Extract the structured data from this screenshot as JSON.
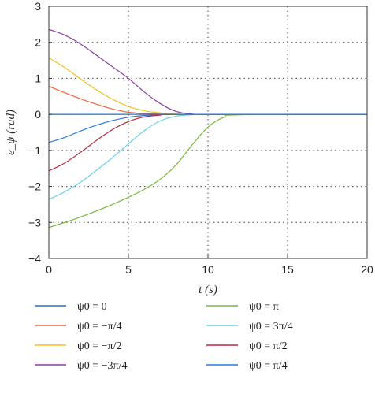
{
  "chart_data": {
    "type": "line",
    "xlabel": "t (s)",
    "ylabel": "e_ψ (rad)",
    "xlim": [
      0,
      20
    ],
    "ylim": [
      -4,
      3
    ],
    "x_ticks": [
      "0",
      "5",
      "10",
      "15",
      "20"
    ],
    "y_ticks": [
      "3",
      "2",
      "1",
      "0",
      "−1",
      "−2",
      "−3",
      "−4"
    ],
    "grid": true,
    "grid_style": "dotted",
    "legend_position": "bottom",
    "series": [
      {
        "name": "ψ0 = 0",
        "color": "#1f77c9",
        "x": [
          0,
          2,
          4,
          6,
          8,
          10,
          12,
          14,
          16,
          18,
          20
        ],
        "y": [
          0,
          0,
          0,
          0,
          0,
          0,
          0,
          0,
          0,
          0,
          0
        ]
      },
      {
        "name": "ψ0 = −π/4",
        "color": "#f0643c",
        "x": [
          0,
          1,
          2,
          3,
          4,
          5,
          6,
          7,
          8,
          10,
          20
        ],
        "y": [
          0.78,
          0.6,
          0.43,
          0.28,
          0.15,
          0.06,
          0.02,
          0.01,
          0.0,
          0.0,
          0.0
        ]
      },
      {
        "name": "ψ0 = −π/2",
        "color": "#f0c020",
        "x": [
          0,
          1,
          2,
          3,
          4,
          5,
          6,
          7,
          8,
          10,
          20
        ],
        "y": [
          1.57,
          1.3,
          0.98,
          0.68,
          0.42,
          0.22,
          0.1,
          0.04,
          0.01,
          0.0,
          0.0
        ]
      },
      {
        "name": "ψ0 = −3π/4",
        "color": "#8c3ea0",
        "x": [
          0,
          1,
          2,
          3,
          4,
          5,
          6,
          7,
          8,
          9,
          10,
          20
        ],
        "y": [
          2.36,
          2.2,
          1.95,
          1.64,
          1.32,
          1.0,
          0.62,
          0.3,
          0.08,
          0.01,
          0.0,
          0.0
        ]
      },
      {
        "name": "ψ0 = π",
        "color": "#78b83c",
        "x": [
          0,
          1,
          2,
          3,
          4,
          5,
          6,
          7,
          8,
          9,
          10,
          11,
          12,
          20
        ],
        "y": [
          -3.14,
          -3.0,
          -2.85,
          -2.68,
          -2.5,
          -2.3,
          -2.08,
          -1.8,
          -1.4,
          -0.85,
          -0.35,
          -0.08,
          -0.01,
          0.0
        ]
      },
      {
        "name": "ψ0 = 3π/4",
        "color": "#6cd0f0",
        "x": [
          0,
          1,
          2,
          3,
          4,
          5,
          6,
          7,
          8,
          9,
          10,
          20
        ],
        "y": [
          -2.36,
          -2.15,
          -1.88,
          -1.55,
          -1.2,
          -0.82,
          -0.45,
          -0.18,
          -0.05,
          -0.01,
          0.0,
          0.0
        ]
      },
      {
        "name": "ψ0 = π/2",
        "color": "#b82840",
        "x": [
          0,
          1,
          2,
          3,
          4,
          5,
          6,
          7,
          8,
          20
        ],
        "y": [
          -1.57,
          -1.35,
          -1.05,
          -0.72,
          -0.42,
          -0.2,
          -0.07,
          -0.02,
          0.0,
          0.0
        ]
      },
      {
        "name": "ψ0 = π/4",
        "color": "#2a7ae0",
        "x": [
          0,
          1,
          2,
          3,
          4,
          5,
          6,
          7,
          8,
          20
        ],
        "y": [
          -0.78,
          -0.64,
          -0.46,
          -0.3,
          -0.17,
          -0.08,
          -0.03,
          -0.01,
          0.0,
          0.0
        ]
      }
    ]
  }
}
